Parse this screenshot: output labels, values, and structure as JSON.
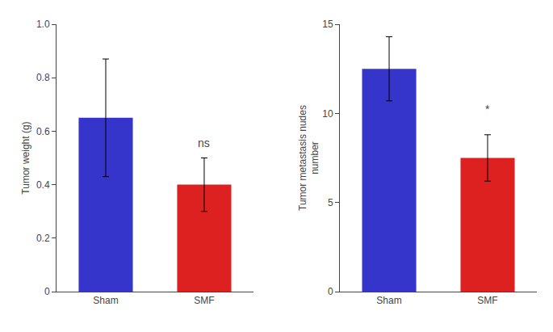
{
  "chart_data": [
    {
      "type": "bar",
      "ylabel": "Tumor weight (g)",
      "categories": [
        "Sham",
        "SMF"
      ],
      "values": [
        0.65,
        0.4
      ],
      "errors": [
        0.22,
        0.1
      ],
      "colors": [
        "#3535cc",
        "#dd2020"
      ],
      "ylim": [
        0,
        1.0
      ],
      "yticks": [
        0,
        0.2,
        0.4,
        0.6,
        0.8,
        {
          "value": 1.0,
          "label": "1.0"
        }
      ],
      "grid": false,
      "annotations": [
        {
          "text": "ns",
          "x": "SMF",
          "y": 0.525
        }
      ]
    },
    {
      "type": "bar",
      "ylabel": "Tumor metastasis nudes\nnumber",
      "categories": [
        "Sham",
        "SMF"
      ],
      "values": [
        12.5,
        7.5
      ],
      "errors": [
        1.8,
        1.3
      ],
      "colors": [
        "#3535cc",
        "#dd2020"
      ],
      "ylim": [
        0,
        15
      ],
      "yticks": [
        0,
        5,
        10,
        15
      ],
      "grid": false,
      "annotations": [
        {
          "text": "*",
          "x": "SMF",
          "y": 9.8
        }
      ]
    }
  ]
}
